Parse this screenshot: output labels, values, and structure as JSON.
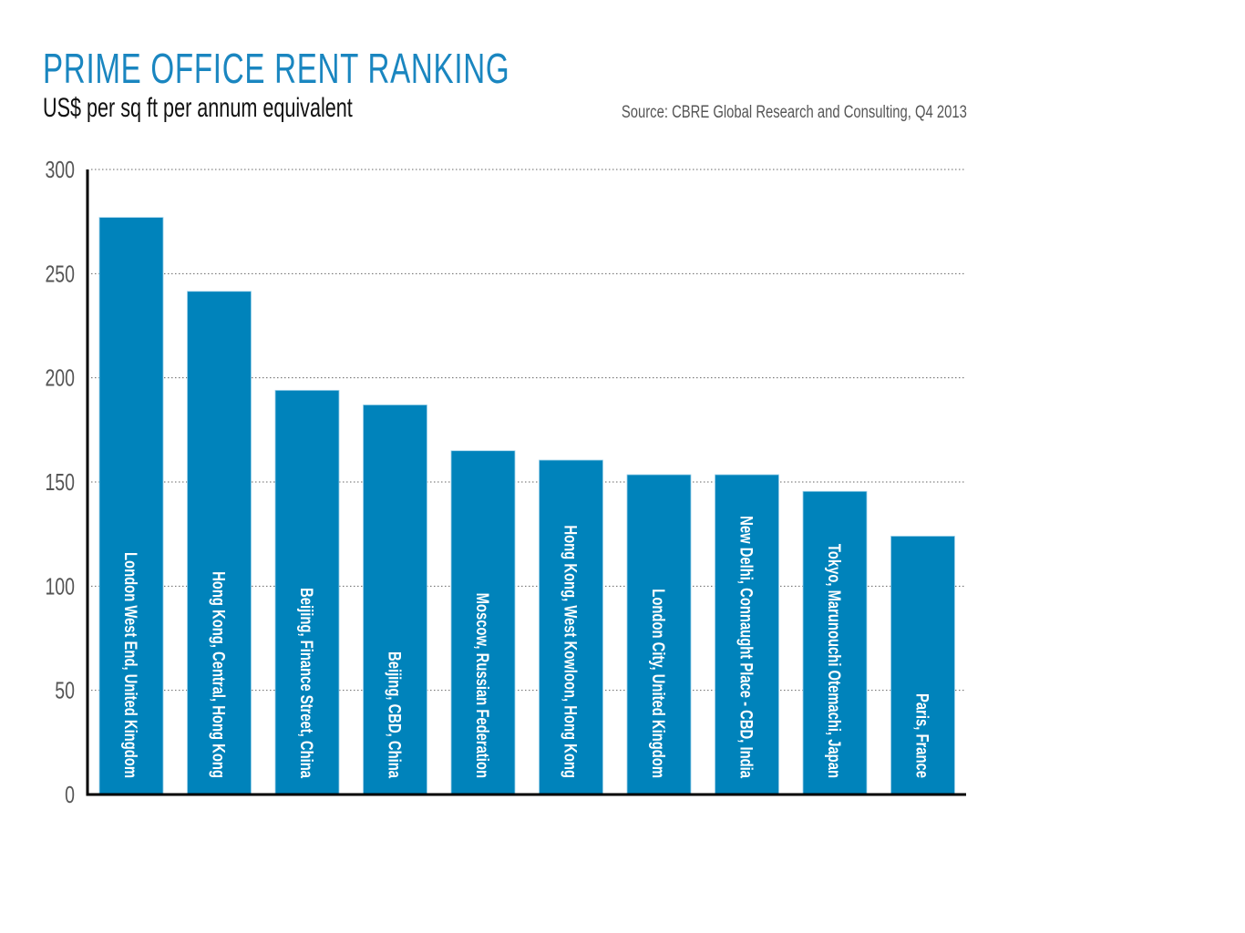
{
  "header": {
    "title": "PRIME OFFICE RENT RANKING",
    "subtitle": "US$ per sq ft per annum equivalent",
    "source": "Source: CBRE Global Research and Consulting, Q4 2013"
  },
  "colors": {
    "title": "#1a86c0",
    "bar": "#0083bb",
    "bar_edge": "#9fd2ea",
    "axis": "#000000",
    "grid": "#666666",
    "tick_text": "#555555",
    "bar_text": "#ffffff"
  },
  "chart_data": {
    "type": "bar",
    "title": "PRIME OFFICE RENT RANKING",
    "subtitle": "US$ per sq ft per annum equivalent",
    "xlabel": "",
    "ylabel": "US$ per sq ft per annum equivalent",
    "ylim": [
      0,
      300
    ],
    "yticks": [
      0,
      50,
      100,
      150,
      200,
      250,
      300
    ],
    "grid": true,
    "grid_style": "dotted horizontal",
    "legend": "none",
    "category_labels_placement": "inside bars, rotated vertical",
    "categories": [
      "London West End, United Kingdom",
      "Hong Kong, Central, Hong Kong",
      "Beijing, Finance Street, China",
      "Beijing, CBD, China",
      "Moscow, Russian Federation",
      "Hong Kong, West Kowloon, Hong Kong",
      "London City, United Kingdom",
      "New Delhi, Connaught Place - CBD, India",
      "Tokyo, Marunouchi Otemachi, Japan",
      "Paris, France"
    ],
    "values": [
      277,
      241.5,
      194,
      187,
      165,
      160.5,
      153.5,
      153.5,
      145.5,
      124
    ]
  }
}
